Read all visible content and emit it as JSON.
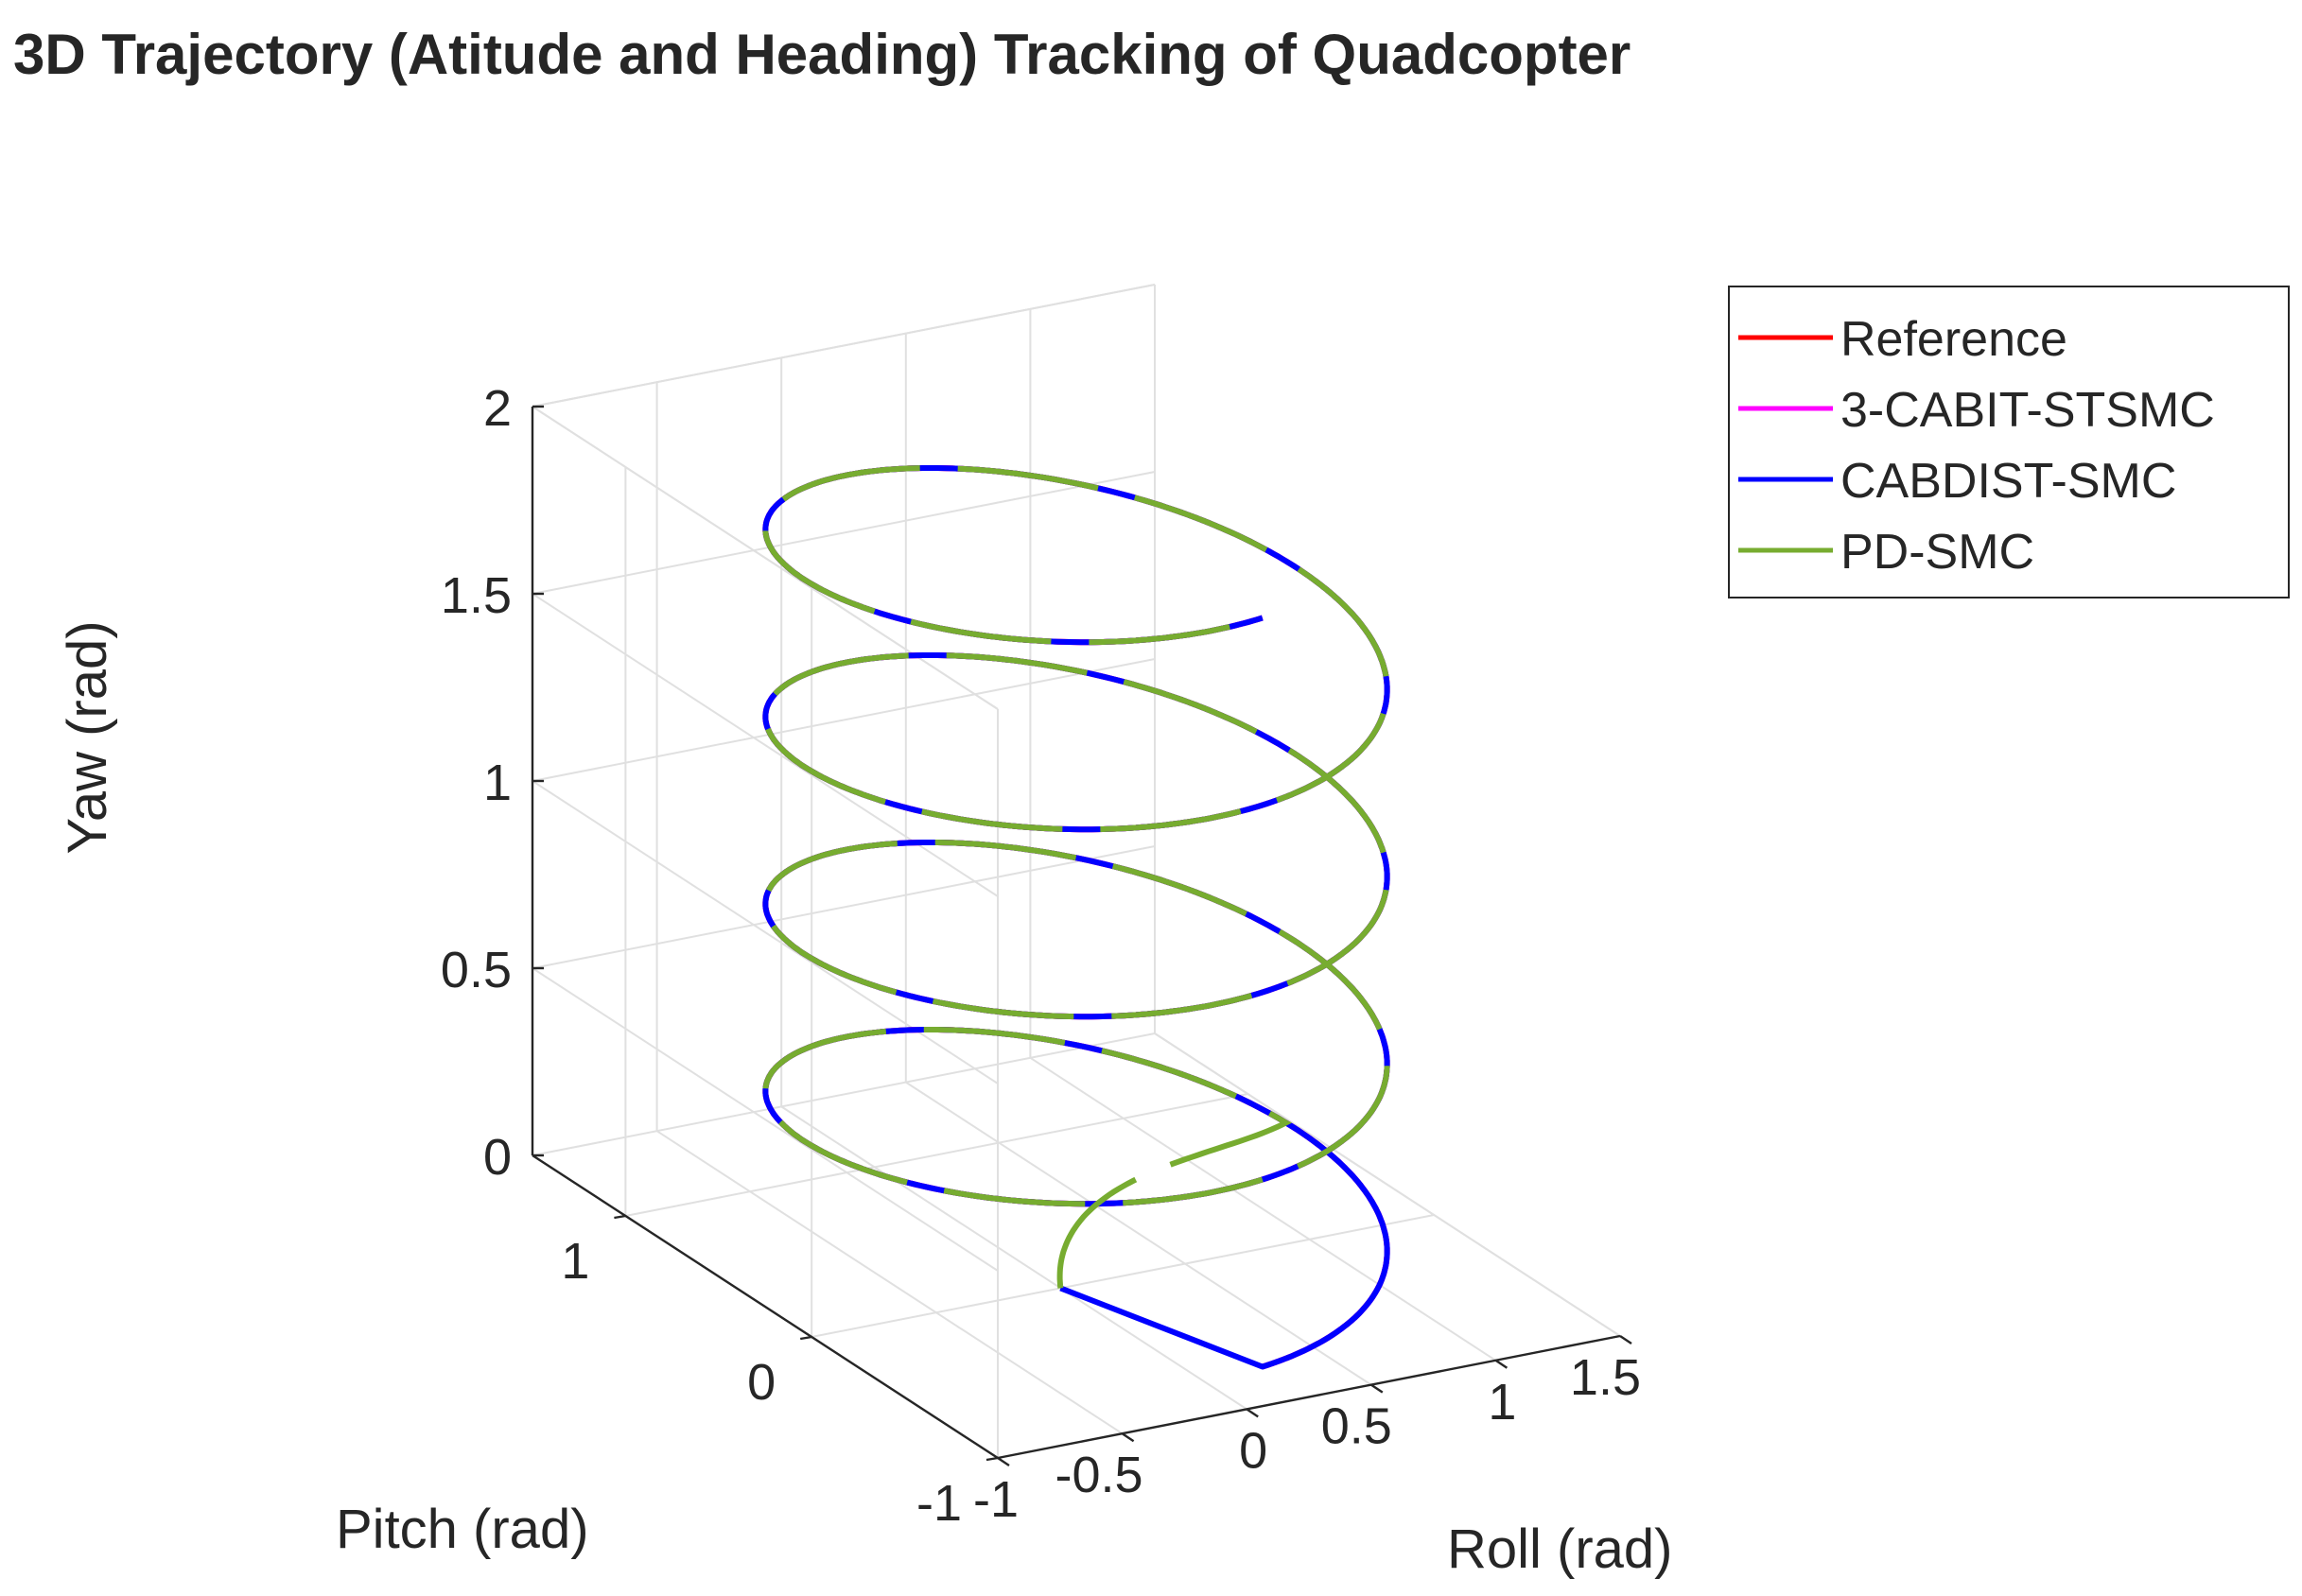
{
  "chart_data": {
    "type": "line",
    "title": "3D Trajectory (Atitude and Heading) Tracking of Quadcopter",
    "xlabel": "Roll (rad)",
    "ylabel": "Pitch (rad)",
    "zlabel": "Yaw (rad)",
    "xlim": [
      -1,
      1.5
    ],
    "ylim": [
      -1,
      1.5
    ],
    "zlim": [
      0,
      2
    ],
    "x_ticks": [
      "-1",
      "-0.5",
      "0",
      "0.5",
      "1",
      "1.5"
    ],
    "y_ticks": [
      "-1",
      "0",
      "1"
    ],
    "z_ticks": [
      "0",
      "0.5",
      "1",
      "1.5",
      "2"
    ],
    "grid": true,
    "legend_position": "top-right",
    "series": [
      {
        "name": "Reference",
        "color": "#ff0000",
        "description_values": {
          "center": [
            0.25,
            0.25
          ],
          "radius": 1.0,
          "z_start": 0,
          "z_end": 2.0,
          "turns": 4
        }
      },
      {
        "name": "3-CABIT-STSMC",
        "color": "#ff00ff"
      },
      {
        "name": "CABDIST-SMC",
        "color": "#0000ff",
        "start": [
          0,
          0,
          0
        ]
      },
      {
        "name": "PD-SMC",
        "color": "#77ac30",
        "start": [
          0,
          0,
          0
        ]
      }
    ]
  }
}
